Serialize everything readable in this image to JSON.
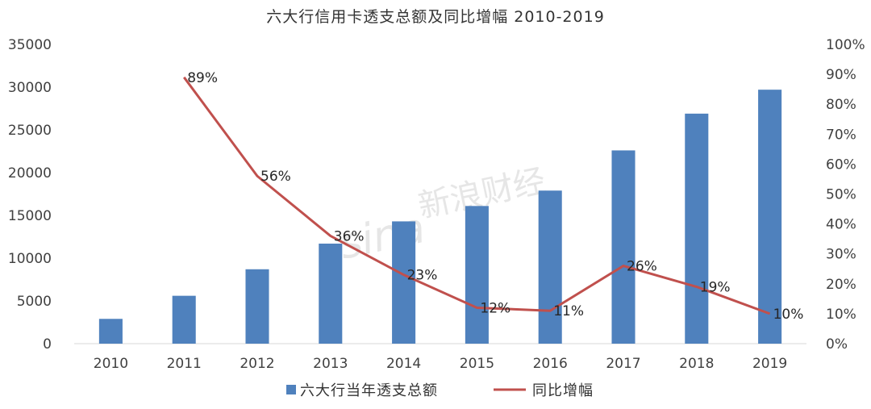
{
  "chart_data": {
    "type": "bar+line",
    "title": "六大行信用卡透支总额及同比增幅 2010-2019",
    "categories": [
      "2010",
      "2011",
      "2012",
      "2013",
      "2014",
      "2015",
      "2016",
      "2017",
      "2018",
      "2019"
    ],
    "series": [
      {
        "name": "六大行当年透支总额",
        "type": "bar",
        "axis": "left",
        "color": "#4f81bd",
        "values": [
          2900,
          5600,
          8700,
          11700,
          14300,
          16100,
          17900,
          22600,
          26900,
          29700
        ]
      },
      {
        "name": "同比增幅",
        "type": "line",
        "axis": "right",
        "color": "#c0504d",
        "values": [
          null,
          89,
          56,
          36,
          23,
          12,
          11,
          26,
          19,
          10
        ],
        "labels": [
          "",
          "89%",
          "56%",
          "36%",
          "23%",
          "12%",
          "11%",
          "26%",
          "19%",
          "10%"
        ]
      }
    ],
    "y_left": {
      "min": 0,
      "max": 35000,
      "ticks": [
        "0",
        "5000",
        "10000",
        "15000",
        "20000",
        "25000",
        "30000",
        "35000"
      ]
    },
    "y_right": {
      "min": 0,
      "max": 100,
      "ticks": [
        "0%",
        "10%",
        "20%",
        "30%",
        "40%",
        "50%",
        "60%",
        "70%",
        "80%",
        "90%",
        "100%"
      ]
    },
    "grid": false,
    "legend_position": "bottom",
    "watermark": "sina新浪财经"
  }
}
